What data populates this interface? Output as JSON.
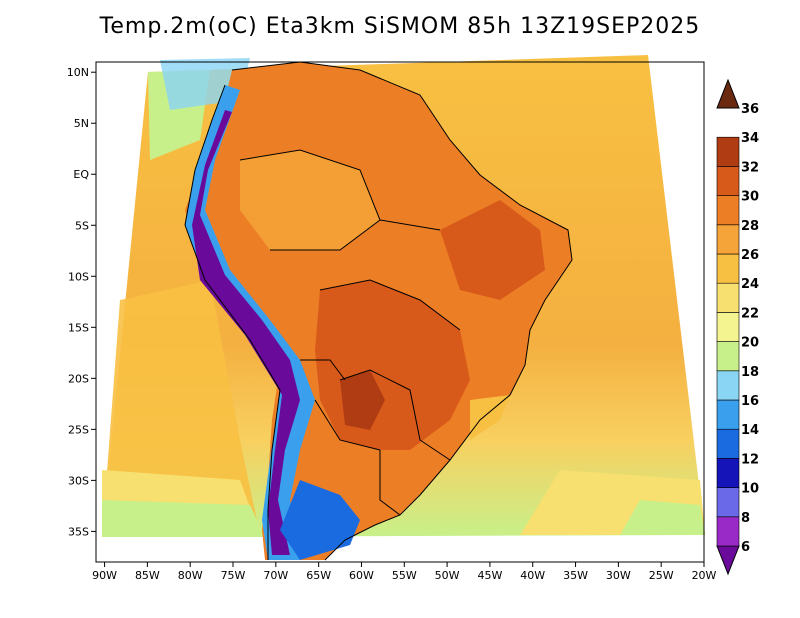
{
  "title": "Temp.2m(oC) Eta3km SiSMOM 85h 13Z19SEP2025",
  "map": {
    "region": "South America",
    "variable": "2 m air temperature",
    "units": "oC",
    "lon_range": [
      -91,
      -20
    ],
    "lat_range": [
      -38,
      11
    ],
    "lat_ticks": [
      {
        "value": 10,
        "label": "10N"
      },
      {
        "value": 5,
        "label": "5N"
      },
      {
        "value": 0,
        "label": "EQ"
      },
      {
        "value": -5,
        "label": "5S"
      },
      {
        "value": -10,
        "label": "10S"
      },
      {
        "value": -15,
        "label": "15S"
      },
      {
        "value": -20,
        "label": "20S"
      },
      {
        "value": -25,
        "label": "25S"
      },
      {
        "value": -30,
        "label": "30S"
      },
      {
        "value": -35,
        "label": "35S"
      }
    ],
    "lon_ticks": [
      {
        "value": -90,
        "label": "90W"
      },
      {
        "value": -85,
        "label": "85W"
      },
      {
        "value": -80,
        "label": "80W"
      },
      {
        "value": -75,
        "label": "75W"
      },
      {
        "value": -70,
        "label": "70W"
      },
      {
        "value": -65,
        "label": "65W"
      },
      {
        "value": -60,
        "label": "60W"
      },
      {
        "value": -55,
        "label": "55W"
      },
      {
        "value": -50,
        "label": "50W"
      },
      {
        "value": -45,
        "label": "45W"
      },
      {
        "value": -40,
        "label": "40W"
      },
      {
        "value": -35,
        "label": "35W"
      },
      {
        "value": -30,
        "label": "30W"
      },
      {
        "value": -25,
        "label": "25W"
      },
      {
        "value": -20,
        "label": "20W"
      }
    ]
  },
  "colorbar": {
    "levels": [
      6,
      8,
      10,
      12,
      14,
      16,
      18,
      20,
      22,
      24,
      26,
      28,
      30,
      32,
      34,
      36
    ],
    "labels": [
      "36",
      "34",
      "32",
      "30",
      "28",
      "26",
      "24",
      "22",
      "20",
      "18",
      "16",
      "14",
      "12",
      "10",
      "8",
      "6"
    ],
    "colors": [
      "#6a0a9a",
      "#9a2ac8",
      "#6a6ae8",
      "#1414b8",
      "#1a6ae0",
      "#3aa0ee",
      "#8ad4f4",
      "#c8f08a",
      "#f4f490",
      "#f8e070",
      "#f8c042",
      "#f4a438",
      "#ec7e26",
      "#d85a1a",
      "#b03c14",
      "#782008"
    ],
    "under_color": "#6a0a9a",
    "over_color": "#6a2a12"
  }
}
